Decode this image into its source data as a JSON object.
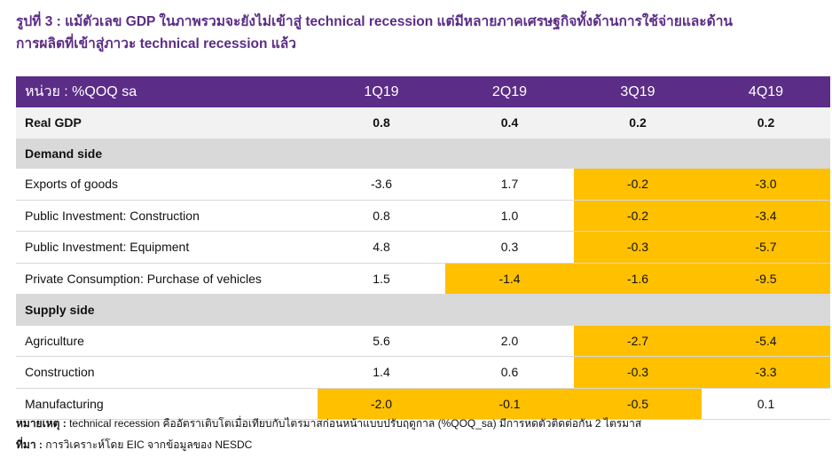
{
  "title_line1": "รูปที่ 3 : แม้ตัวเลข GDP ในภาพรวมจะยังไม่เข้าสู่ technical recession แต่มีหลายภาคเศรษฐกิจทั้งด้านการใช้จ่ายและด้าน",
  "title_line2": "การผลิตที่เข้าสู่ภาวะ technical recession แล้ว",
  "table": {
    "header": {
      "label": "หน่วย : %QOQ sa",
      "cols": [
        "1Q19",
        "2Q19",
        "3Q19",
        "4Q19"
      ]
    },
    "highlight_color": "#ffc000",
    "real_gdp": {
      "label": "Real GDP",
      "values": [
        "0.8",
        "0.4",
        "0.2",
        "0.2"
      ]
    },
    "demand_side": {
      "label": "Demand side",
      "rows": [
        {
          "label": "Exports of goods",
          "values": [
            "-3.6",
            "1.7",
            "-0.2",
            "-3.0"
          ],
          "highlight": [
            false,
            false,
            true,
            true
          ]
        },
        {
          "label": "Public Investment: Construction",
          "values": [
            "0.8",
            "1.0",
            "-0.2",
            "-3.4"
          ],
          "highlight": [
            false,
            false,
            true,
            true
          ]
        },
        {
          "label": "Public Investment: Equipment",
          "values": [
            "4.8",
            "0.3",
            "-0.3",
            "-5.7"
          ],
          "highlight": [
            false,
            false,
            true,
            true
          ]
        },
        {
          "label": "Private Consumption: Purchase of vehicles",
          "values": [
            "1.5",
            "-1.4",
            "-1.6",
            "-9.5"
          ],
          "highlight": [
            false,
            true,
            true,
            true
          ]
        }
      ]
    },
    "supply_side": {
      "label": "Supply side",
      "rows": [
        {
          "label": "Agriculture",
          "values": [
            "5.6",
            "2.0",
            "-2.7",
            "-5.4"
          ],
          "highlight": [
            false,
            false,
            true,
            true
          ]
        },
        {
          "label": "Construction",
          "values": [
            "1.4",
            "0.6",
            "-0.3",
            "-3.3"
          ],
          "highlight": [
            false,
            false,
            true,
            true
          ]
        },
        {
          "label": "Manufacturing",
          "values": [
            "-2.0",
            "-0.1",
            "-0.5",
            "0.1"
          ],
          "highlight": [
            true,
            true,
            true,
            false
          ]
        }
      ]
    }
  },
  "footnote": {
    "note_label": "หมายเหตุ :",
    "note_text": "technical recession คืออัตราเติบโตเมื่อเทียบกับไตรมาสก่อนหน้าแบบปรับฤดูกาล (%QOQ_sa) มีการหดตัวติดต่อกัน 2 ไตรมาส",
    "source_label": "ที่มา :",
    "source_text": "การวิเคราะห์โดย EIC จากข้อมูลของ NESDC"
  }
}
